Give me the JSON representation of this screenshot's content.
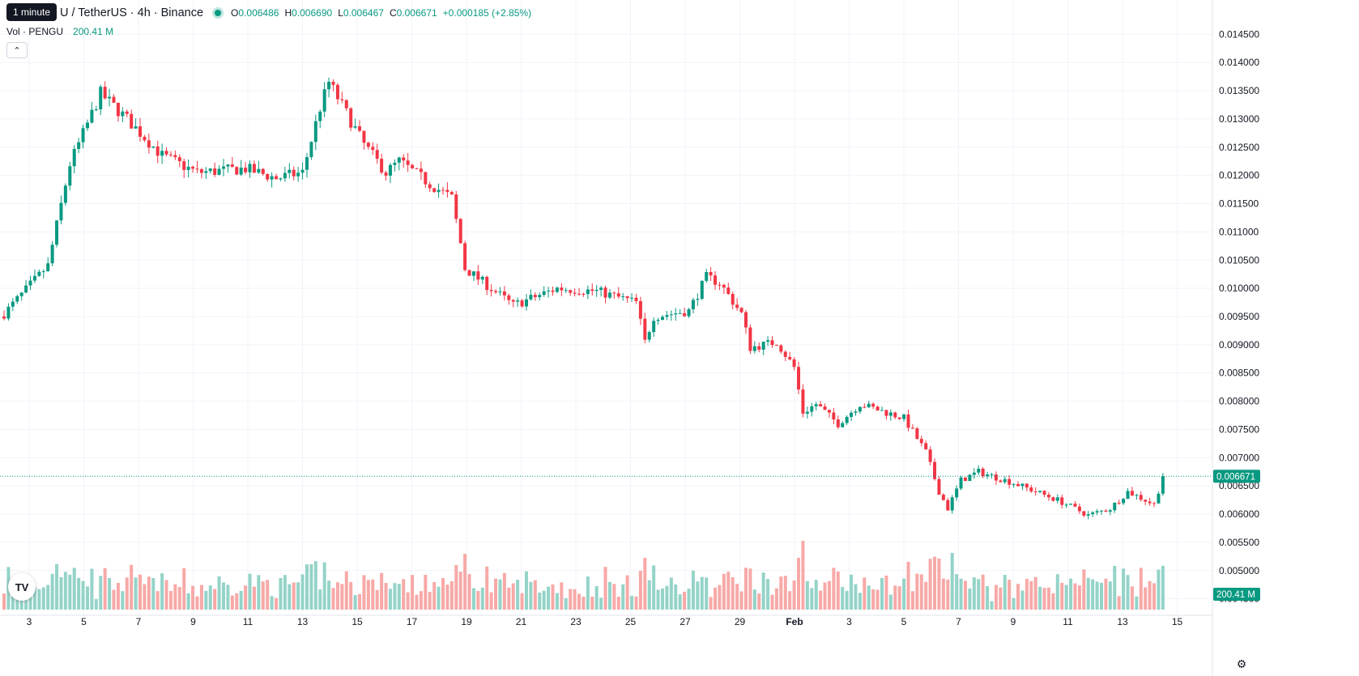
{
  "header": {
    "tooltip": "1 minute",
    "symbol": "U / TetherUS · 4h · Binance",
    "open_label": "O",
    "open": "0.006486",
    "high_label": "H",
    "high": "0.006690",
    "low_label": "L",
    "low": "0.006467",
    "close_label": "C",
    "close": "0.006671",
    "change": "+0.000185 (+2.85%)"
  },
  "volume": {
    "label": "Vol · PENGU",
    "value": "200.41 M"
  },
  "controls": {
    "collapse_icon": "chevron-up-icon",
    "settings_icon": "gear-icon",
    "logo_text": "TV"
  },
  "colors": {
    "up": "#089981",
    "down": "#f23645",
    "up_volume": "#94d3c8",
    "down_volume": "#f7a9a7"
  },
  "chart_data": {
    "type": "candlestick",
    "interval": "4h",
    "x_tick_labels": [
      "3",
      "5",
      "7",
      "9",
      "11",
      "13",
      "15",
      "17",
      "19",
      "21",
      "23",
      "25",
      "27",
      "29",
      "Feb",
      "3",
      "5",
      "7",
      "9",
      "11",
      "13",
      "15"
    ],
    "y_tick_labels": [
      "0.014500",
      "0.014000",
      "0.013500",
      "0.013000",
      "0.012500",
      "0.012000",
      "0.011500",
      "0.011000",
      "0.010500",
      "0.010000",
      "0.009500",
      "0.009000",
      "0.008500",
      "0.008000",
      "0.007500",
      "0.007000",
      "0.006500",
      "0.006000",
      "0.005500",
      "0.005000",
      "0.004500"
    ],
    "ylim": [
      0.00438,
      0.01472
    ],
    "last_price": 0.006671,
    "last_price_label": "0.006671",
    "volume_label": "200.41 M",
    "grid": true,
    "anchors": [
      [
        0,
        0.00955
      ],
      [
        10,
        0.0104
      ],
      [
        15,
        0.0122
      ],
      [
        22,
        0.01345
      ],
      [
        28,
        0.013
      ],
      [
        36,
        0.01235
      ],
      [
        44,
        0.01205
      ],
      [
        55,
        0.01212
      ],
      [
        62,
        0.01195
      ],
      [
        68,
        0.01205
      ],
      [
        72,
        0.0132
      ],
      [
        74,
        0.01365
      ],
      [
        82,
        0.01255
      ],
      [
        87,
        0.01205
      ],
      [
        90,
        0.01225
      ],
      [
        97,
        0.01185
      ],
      [
        102,
        0.0116
      ],
      [
        104,
        0.0108
      ],
      [
        105,
        0.01035
      ],
      [
        116,
        0.0097
      ],
      [
        126,
        0.01
      ],
      [
        135,
        0.00995
      ],
      [
        144,
        0.00975
      ],
      [
        146,
        0.00905
      ],
      [
        148,
        0.0095
      ],
      [
        156,
        0.0096
      ],
      [
        160,
        0.0102
      ],
      [
        163,
        0.0101
      ],
      [
        168,
        0.00955
      ],
      [
        170,
        0.00895
      ],
      [
        176,
        0.00905
      ],
      [
        180,
        0.0086
      ],
      [
        182,
        0.0078
      ],
      [
        185,
        0.00795
      ],
      [
        190,
        0.0076
      ],
      [
        195,
        0.00795
      ],
      [
        205,
        0.0077
      ],
      [
        210,
        0.0071
      ],
      [
        213,
        0.0064
      ],
      [
        215,
        0.0061
      ],
      [
        218,
        0.0066
      ],
      [
        222,
        0.00675
      ],
      [
        230,
        0.00655
      ],
      [
        240,
        0.00625
      ],
      [
        247,
        0.00598
      ],
      [
        252,
        0.0061
      ],
      [
        256,
        0.0064
      ],
      [
        262,
        0.00617
      ],
      [
        264,
        0.00667
      ]
    ],
    "volume_scale": [
      0,
      620
    ]
  }
}
